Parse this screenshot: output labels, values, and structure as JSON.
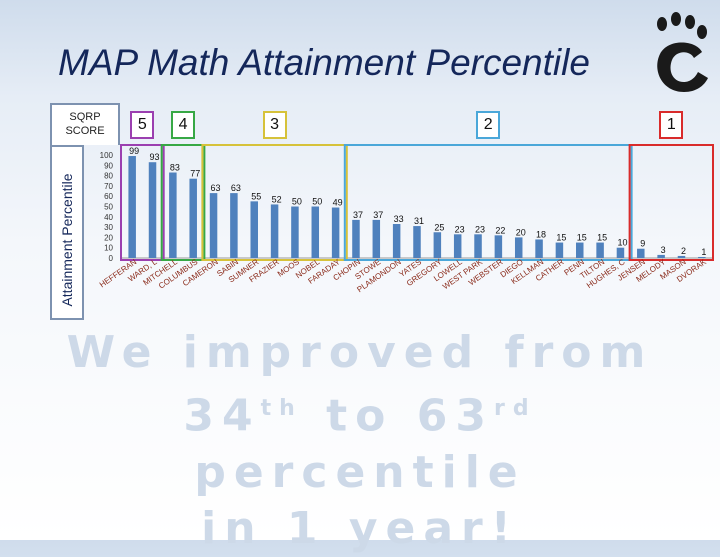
{
  "title": "MAP Math Attainment Percentile",
  "sqrp_label": [
    "SQRP",
    "SCORE"
  ],
  "colors": {
    "bar": "#4f81bd",
    "title": "#14275a",
    "tier_5": "#9b3fb0",
    "tier_4": "#37a845",
    "tier_3": "#d6c23a",
    "tier_2": "#4aa7d9",
    "tier_1": "#d92b2b"
  },
  "tiers": [
    {
      "label": "5",
      "color_key": "tier_5",
      "first": 0,
      "last": 1
    },
    {
      "label": "4",
      "color_key": "tier_4",
      "first": 2,
      "last": 3
    },
    {
      "label": "3",
      "color_key": "tier_3",
      "first": 4,
      "last": 10
    },
    {
      "label": "2",
      "color_key": "tier_2",
      "first": 11,
      "last": 24
    },
    {
      "label": "1",
      "color_key": "tier_1",
      "first": 25,
      "last": 28
    }
  ],
  "chart_data": {
    "type": "bar",
    "ylabel": "Attainment Percentile",
    "ylim": [
      0,
      100
    ],
    "yticks": [
      100,
      90,
      80,
      70,
      60,
      50,
      40,
      30,
      20,
      10,
      0
    ],
    "categories": [
      "HEFFERAN",
      "WARD, L",
      "MITCHELL",
      "COLUMBUS",
      "CAMERON",
      "SABIN",
      "SUMNER",
      "FRAZIER",
      "MOOS",
      "NOBEL",
      "FARADAY",
      "CHOPIN",
      "STOWE",
      "PLAMONDON",
      "YATES",
      "GREGORY",
      "LOWELL",
      "WEST PARK",
      "WEBSTER",
      "DIEGO",
      "KELLMAN",
      "CATHER",
      "PENN",
      "TILTON",
      "HUGHES, C",
      "JENSEN",
      "MELODY",
      "MASON",
      "DVORAK"
    ],
    "values": [
      99,
      93,
      83,
      77,
      63,
      63,
      55,
      52,
      50,
      50,
      49,
      37,
      37,
      33,
      31,
      25,
      23,
      23,
      22,
      20,
      18,
      15,
      15,
      15,
      10,
      9,
      3,
      2,
      1
    ]
  },
  "message": {
    "line1": "We improved from",
    "line2_a": "34",
    "line2_sup1": "th",
    "line2_b": " to 63",
    "line2_sup2": "rd",
    "line2_c": " percentile",
    "line3": "in 1 year!"
  }
}
